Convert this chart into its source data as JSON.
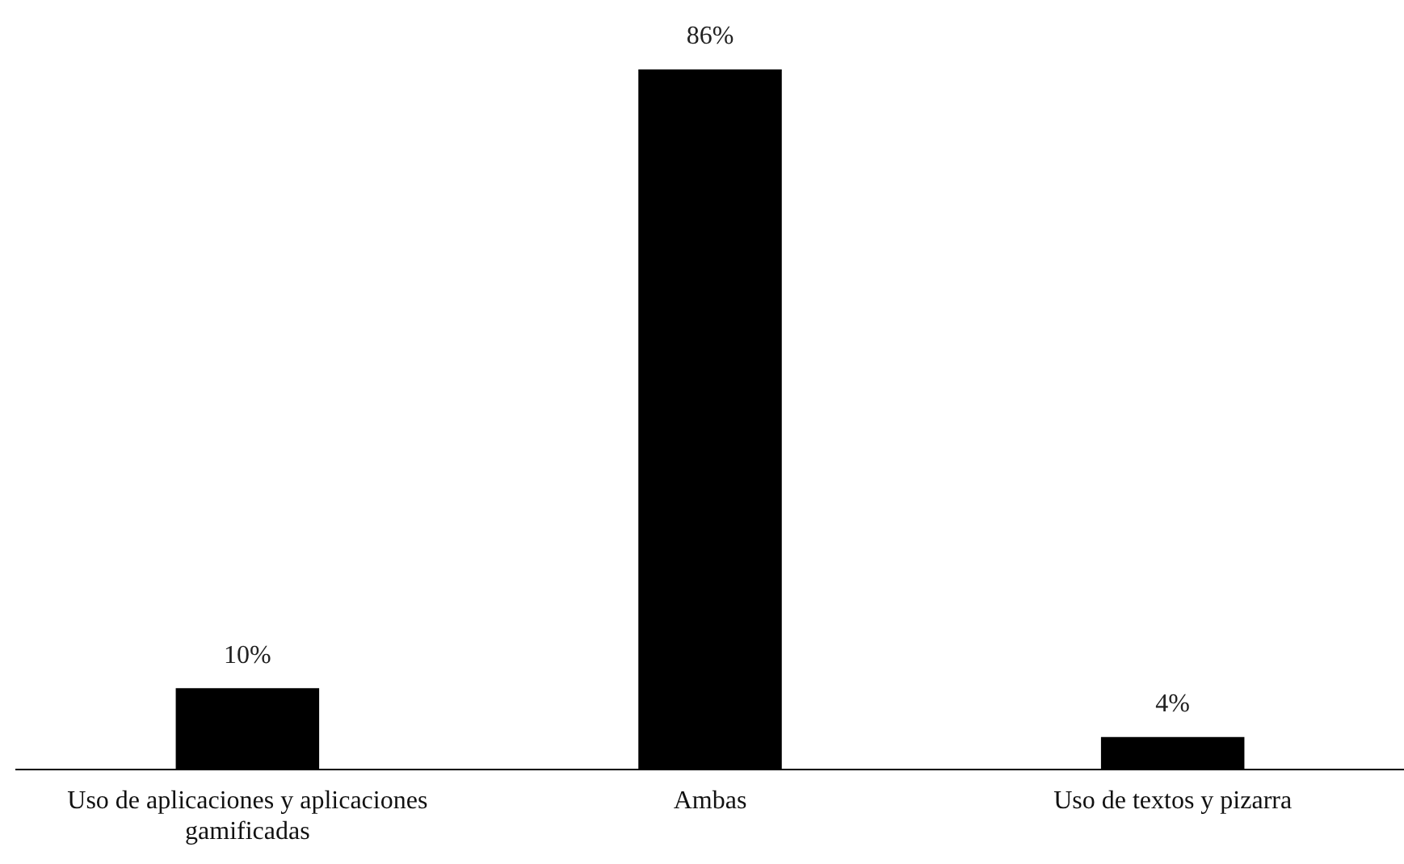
{
  "chart_data": {
    "type": "bar",
    "categories": [
      "Uso de aplicaciones y aplicaciones gamificadas",
      "Ambas",
      "Uso de textos y pizarra"
    ],
    "values": [
      10,
      86,
      4
    ],
    "value_labels": [
      "10%",
      "86%",
      "4%"
    ],
    "color": "#000000",
    "grid": false,
    "legend": false
  }
}
